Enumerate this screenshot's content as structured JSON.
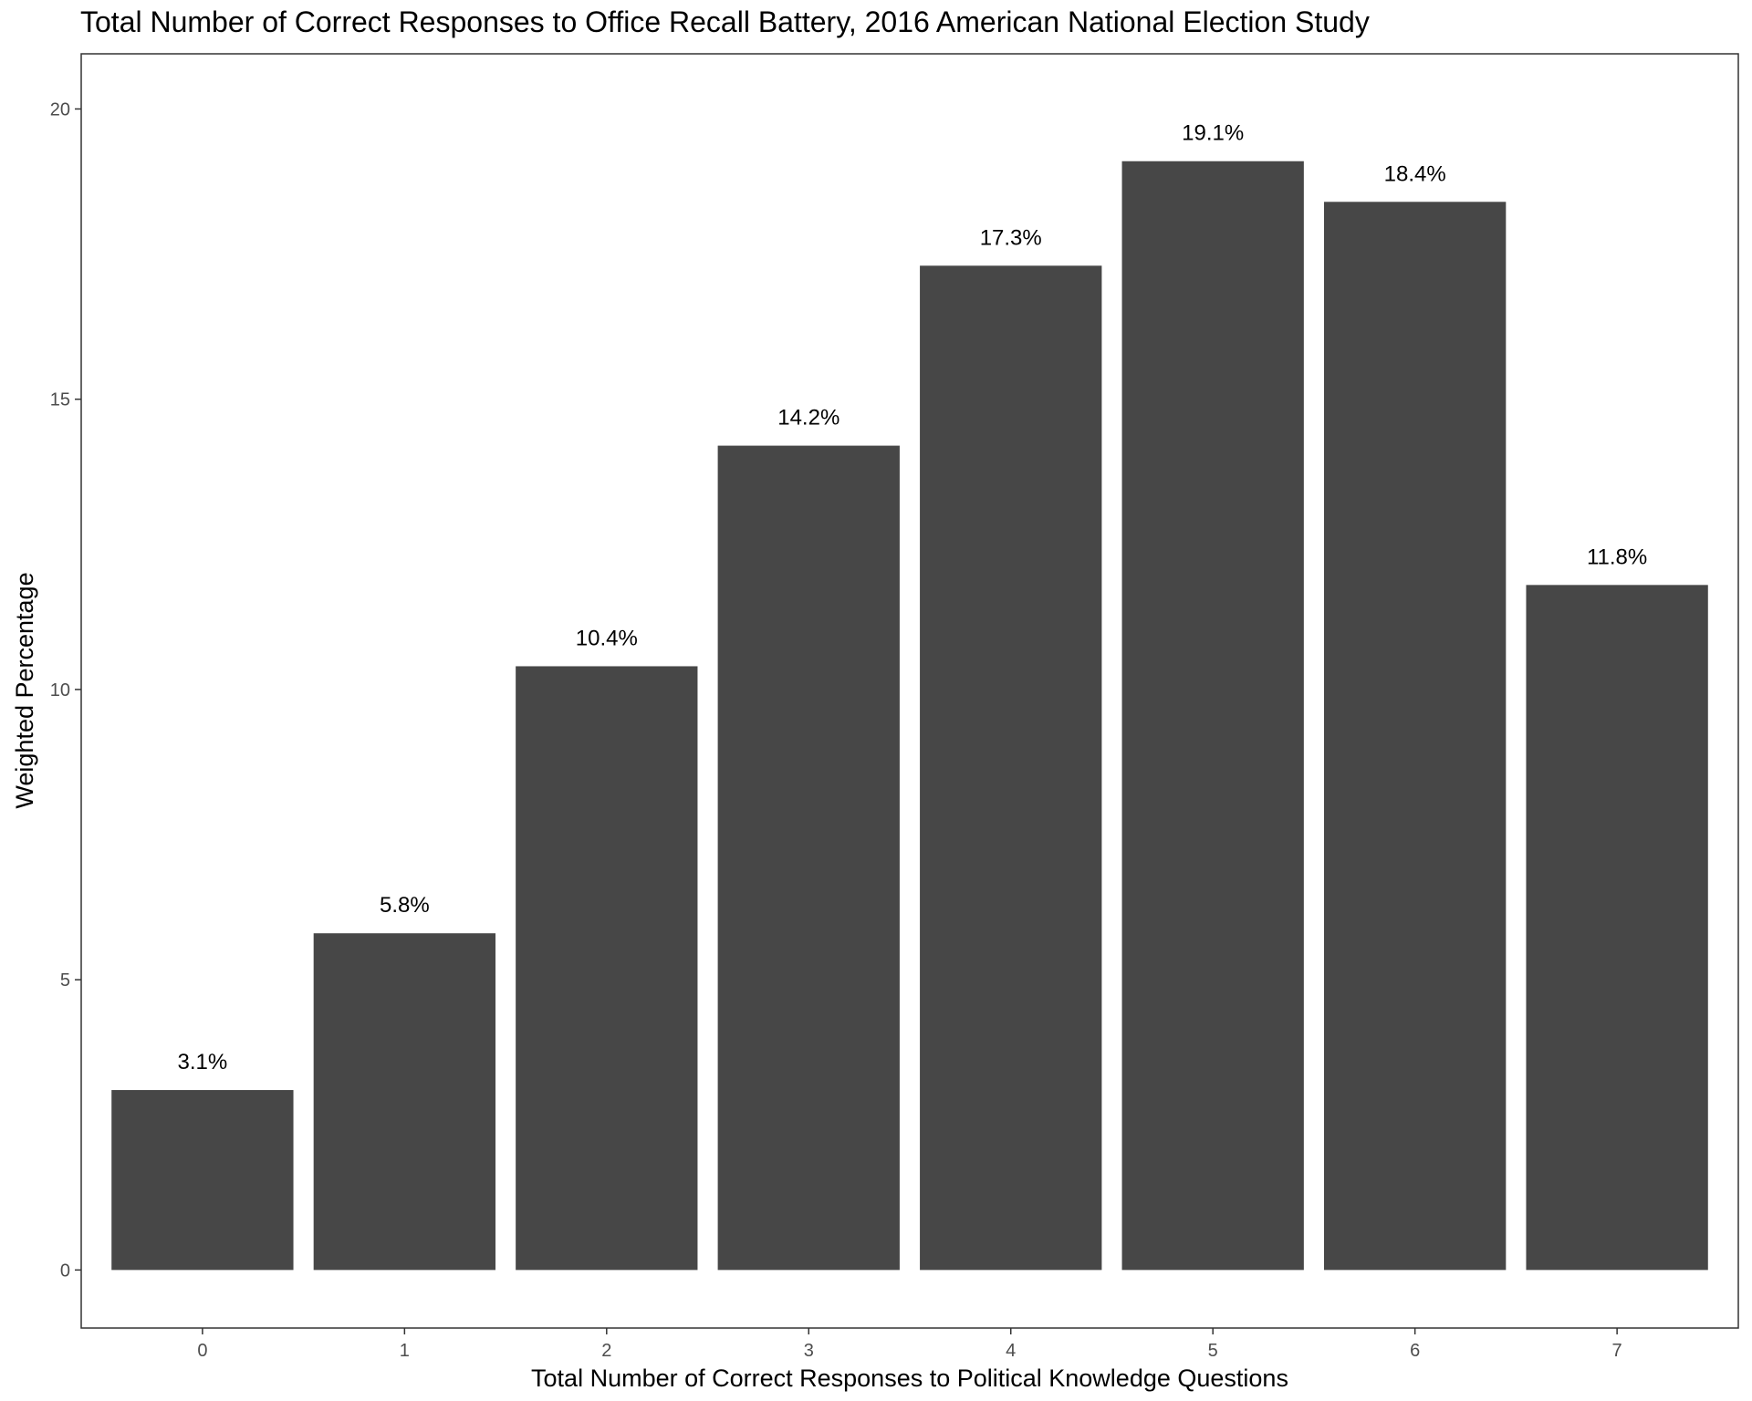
{
  "chart_data": {
    "type": "bar",
    "title": "Total Number of Correct Responses to Office Recall Battery, 2016 American National Election Study",
    "xlabel": "Total Number of Correct Responses to Political Knowledge Questions",
    "ylabel": "Weighted Percentage",
    "categories": [
      "0",
      "1",
      "2",
      "3",
      "4",
      "5",
      "6",
      "7"
    ],
    "values": [
      3.1,
      5.8,
      10.4,
      14.2,
      17.3,
      19.1,
      18.4,
      11.8
    ],
    "data_labels": [
      "3.1%",
      "5.8%",
      "10.4%",
      "14.2%",
      "17.3%",
      "19.1%",
      "18.4%",
      "11.8%"
    ],
    "yticks": [
      0,
      5,
      10,
      15,
      20
    ],
    "ylim": [
      -1,
      20.95
    ],
    "grid": false,
    "bar_color": "#474747"
  }
}
